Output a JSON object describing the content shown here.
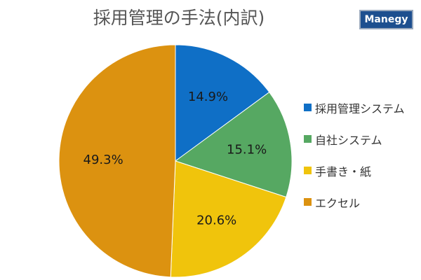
{
  "title": "採用管理の手法(内訳)",
  "logo": "Manegy",
  "chart_data": {
    "type": "pie",
    "title": "採用管理の手法(内訳)",
    "categories": [
      "採用管理システム",
      "自社システム",
      "手書き・紙",
      "エクセル"
    ],
    "values": [
      14.9,
      15.1,
      20.6,
      49.3
    ],
    "labels": [
      "14.9%",
      "15.1%",
      "20.6%",
      "49.3%"
    ],
    "colors": [
      "#0f6fc6",
      "#56a862",
      "#f0c40c",
      "#dc9210"
    ],
    "start_angle": "12 o'clock",
    "direction": "clockwise",
    "legend_position": "right"
  }
}
